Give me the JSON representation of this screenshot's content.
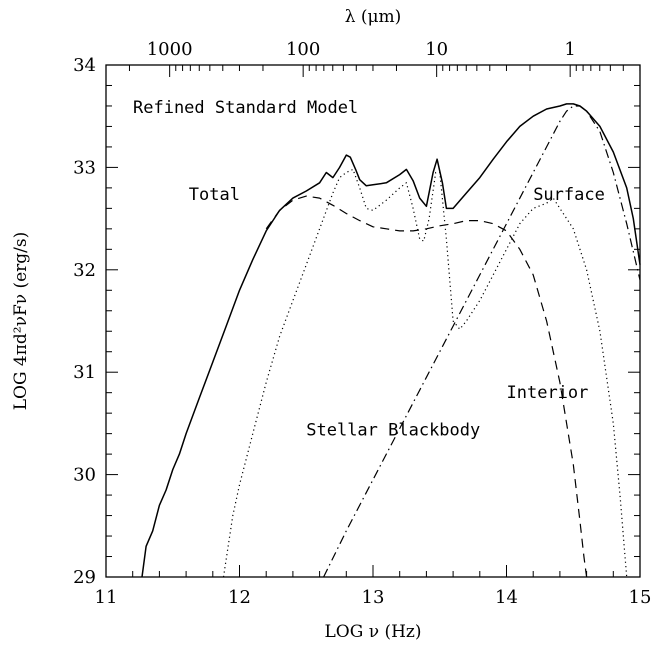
{
  "chart_data": {
    "type": "line",
    "title": "Refined Standard Model",
    "xlabel": "LOG ν (Hz)",
    "ylabel": "LOG 4πd²νFν (erg/s)",
    "top_axis_label": "λ (μm)",
    "xlim": [
      11,
      15
    ],
    "ylim": [
      29,
      34
    ],
    "x_ticks": [
      11,
      12,
      13,
      14,
      15
    ],
    "y_ticks": [
      29,
      30,
      31,
      32,
      33,
      34
    ],
    "x_tick_labels": [
      "11",
      "12",
      "13",
      "14",
      "15"
    ],
    "y_tick_labels": [
      "29",
      "30",
      "31",
      "32",
      "33",
      "34"
    ],
    "top_ticks": [
      {
        "label": "1000",
        "wavelength_um": 1000
      },
      {
        "label": "100",
        "wavelength_um": 100
      },
      {
        "label": "10",
        "wavelength_um": 10
      },
      {
        "label": "1",
        "wavelength_um": 1
      }
    ],
    "grid": false,
    "series": [
      {
        "name": "Total",
        "style": "solid",
        "x": [
          11.27,
          11.3,
          11.35,
          11.4,
          11.45,
          11.5,
          11.55,
          11.6,
          11.7,
          11.8,
          11.9,
          12.0,
          12.1,
          12.2,
          12.3,
          12.4,
          12.5,
          12.6,
          12.65,
          12.7,
          12.75,
          12.8,
          12.83,
          12.87,
          12.9,
          12.95,
          13.0,
          13.1,
          13.2,
          13.25,
          13.3,
          13.35,
          13.4,
          13.45,
          13.48,
          13.52,
          13.55,
          13.6,
          13.7,
          13.8,
          13.9,
          14.0,
          14.1,
          14.2,
          14.3,
          14.4,
          14.45,
          14.5,
          14.55,
          14.6,
          14.7,
          14.8,
          14.9,
          14.95,
          15.0
        ],
        "y": [
          29.0,
          29.3,
          29.45,
          29.7,
          29.85,
          30.05,
          30.2,
          30.4,
          30.75,
          31.1,
          31.45,
          31.8,
          32.1,
          32.38,
          32.58,
          32.7,
          32.77,
          32.85,
          32.95,
          32.9,
          33.0,
          33.12,
          33.1,
          32.98,
          32.88,
          32.82,
          32.83,
          32.85,
          32.93,
          32.98,
          32.87,
          32.7,
          32.62,
          32.95,
          33.08,
          32.85,
          32.6,
          32.6,
          32.75,
          32.9,
          33.08,
          33.25,
          33.4,
          33.5,
          33.57,
          33.6,
          33.62,
          33.62,
          33.6,
          33.55,
          33.4,
          33.15,
          32.8,
          32.5,
          32.05
        ]
      },
      {
        "name": "Interior",
        "style": "dashed",
        "x": [
          12.2,
          12.3,
          12.4,
          12.5,
          12.6,
          12.7,
          12.8,
          12.9,
          13.0,
          13.1,
          13.2,
          13.3,
          13.4,
          13.5,
          13.6,
          13.7,
          13.8,
          13.9,
          14.0,
          14.1,
          14.2,
          14.3,
          14.4,
          14.5,
          14.55,
          14.58,
          14.6
        ],
        "y": [
          32.4,
          32.58,
          32.68,
          32.72,
          32.7,
          32.63,
          32.55,
          32.48,
          32.42,
          32.4,
          32.38,
          32.38,
          32.4,
          32.43,
          32.45,
          32.48,
          32.48,
          32.45,
          32.38,
          32.2,
          31.95,
          31.5,
          30.9,
          30.1,
          29.55,
          29.2,
          29.0
        ]
      },
      {
        "name": "Surface",
        "style": "dotted",
        "x": [
          11.88,
          11.95,
          12.0,
          12.1,
          12.2,
          12.3,
          12.4,
          12.5,
          12.6,
          12.7,
          12.75,
          12.8,
          12.85,
          12.9,
          12.95,
          13.0,
          13.1,
          13.2,
          13.25,
          13.3,
          13.35,
          13.38,
          13.42,
          13.47,
          13.5,
          13.55,
          13.6,
          13.65,
          13.7,
          13.8,
          13.9,
          14.0,
          14.1,
          14.2,
          14.3,
          14.35,
          14.4,
          14.5,
          14.6,
          14.7,
          14.8,
          14.85,
          14.9
        ],
        "y": [
          29.0,
          29.6,
          29.9,
          30.4,
          30.9,
          31.35,
          31.7,
          32.05,
          32.4,
          32.75,
          32.9,
          32.95,
          32.98,
          32.8,
          32.6,
          32.58,
          32.68,
          32.8,
          32.85,
          32.6,
          32.3,
          32.28,
          32.5,
          32.95,
          32.95,
          32.3,
          31.5,
          31.42,
          31.5,
          31.7,
          31.95,
          32.2,
          32.45,
          32.6,
          32.65,
          32.7,
          32.6,
          32.4,
          32.0,
          31.4,
          30.5,
          29.8,
          29.0
        ]
      },
      {
        "name": "Stellar Blackbody",
        "style": "dashdot",
        "x": [
          12.63,
          12.8,
          13.0,
          13.2,
          13.4,
          13.6,
          13.8,
          14.0,
          14.2,
          14.3,
          14.4,
          14.45,
          14.5,
          14.55,
          14.6,
          14.7,
          14.8,
          14.9,
          15.0
        ],
        "y": [
          29.0,
          29.45,
          29.95,
          30.45,
          30.95,
          31.45,
          31.95,
          32.45,
          32.95,
          33.2,
          33.45,
          33.55,
          33.6,
          33.6,
          33.55,
          33.35,
          32.95,
          32.45,
          31.9
        ]
      }
    ],
    "annotations": [
      {
        "text": "Total",
        "x": 11.62,
        "y": 32.68
      },
      {
        "text": "Surface",
        "x": 14.2,
        "y": 32.68
      },
      {
        "text": "Interior",
        "x": 14.0,
        "y": 30.75
      },
      {
        "text": "Stellar Blackbody",
        "x": 12.5,
        "y": 30.38
      }
    ]
  }
}
